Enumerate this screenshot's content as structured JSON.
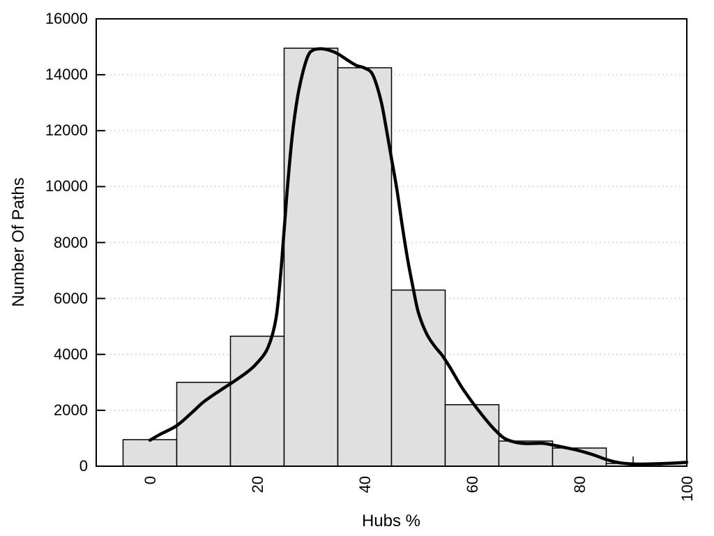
{
  "chart_data": {
    "type": "histogram_with_density_line",
    "title": "",
    "xlabel": "Hubs %",
    "ylabel": "Number Of Paths",
    "xlim": [
      -10,
      100
    ],
    "ylim": [
      0,
      16000
    ],
    "grid": "horizontal dotted lines at each y major tick",
    "legend": "none",
    "x_major_ticks": [
      0,
      20,
      40,
      60,
      80,
      100
    ],
    "x_tick_labels": [
      "0",
      "20",
      "40",
      "60",
      "80",
      "100"
    ],
    "x_minor_tick_step": 10,
    "x_tick_label_rotation_deg": -90,
    "y_major_ticks": [
      0,
      2000,
      4000,
      6000,
      8000,
      10000,
      12000,
      14000,
      16000
    ],
    "y_tick_labels": [
      "0",
      "2000",
      "4000",
      "6000",
      "8000",
      "10000",
      "12000",
      "14000",
      "16000"
    ],
    "bins": [
      {
        "x0": -5,
        "x1": 5,
        "count": 950
      },
      {
        "x0": 5,
        "x1": 15,
        "count": 3000
      },
      {
        "x0": 15,
        "x1": 25,
        "count": 4650
      },
      {
        "x0": 25,
        "x1": 35,
        "count": 14950
      },
      {
        "x0": 35,
        "x1": 45,
        "count": 14250
      },
      {
        "x0": 45,
        "x1": 55,
        "count": 6300
      },
      {
        "x0": 55,
        "x1": 65,
        "count": 2200
      },
      {
        "x0": 65,
        "x1": 75,
        "count": 900
      },
      {
        "x0": 75,
        "x1": 85,
        "count": 650
      },
      {
        "x0": 85,
        "x1": 95,
        "count": 100
      },
      {
        "x0": 95,
        "x1": 100,
        "count": 130
      }
    ],
    "density_curve": [
      [
        0,
        930
      ],
      [
        2,
        1150
      ],
      [
        5,
        1450
      ],
      [
        8,
        1950
      ],
      [
        10,
        2300
      ],
      [
        13,
        2700
      ],
      [
        15,
        2950
      ],
      [
        18,
        3350
      ],
      [
        20,
        3700
      ],
      [
        22,
        4250
      ],
      [
        23.5,
        5300
      ],
      [
        24.5,
        7200
      ],
      [
        25.5,
        9700
      ],
      [
        26.5,
        11800
      ],
      [
        27.5,
        13200
      ],
      [
        28.5,
        14100
      ],
      [
        29.5,
        14700
      ],
      [
        30.5,
        14890
      ],
      [
        32,
        14930
      ],
      [
        33.5,
        14870
      ],
      [
        35,
        14750
      ],
      [
        37,
        14500
      ],
      [
        38.5,
        14330
      ],
      [
        40,
        14240
      ],
      [
        41.5,
        14000
      ],
      [
        43,
        13100
      ],
      [
        44,
        12100
      ],
      [
        45,
        11000
      ],
      [
        46,
        9900
      ],
      [
        47,
        8600
      ],
      [
        48,
        7400
      ],
      [
        49,
        6400
      ],
      [
        50,
        5500
      ],
      [
        51.5,
        4750
      ],
      [
        53,
        4300
      ],
      [
        54.5,
        3950
      ],
      [
        56,
        3500
      ],
      [
        58,
        2850
      ],
      [
        60,
        2300
      ],
      [
        62,
        1800
      ],
      [
        64,
        1350
      ],
      [
        66,
        1000
      ],
      [
        68,
        860
      ],
      [
        70,
        810
      ],
      [
        73,
        820
      ],
      [
        75,
        760
      ],
      [
        77,
        680
      ],
      [
        79,
        600
      ],
      [
        81,
        500
      ],
      [
        83,
        380
      ],
      [
        85,
        240
      ],
      [
        87,
        140
      ],
      [
        89,
        90
      ],
      [
        91,
        75
      ],
      [
        93,
        80
      ],
      [
        95,
        90
      ],
      [
        97,
        105
      ],
      [
        100,
        140
      ]
    ],
    "colors": {
      "bar_fill": "#e0e0e0",
      "bar_stroke": "#000000",
      "curve": "#000000",
      "grid": "#c6c6c6",
      "frame": "#000000",
      "background": "#ffffff",
      "text": "#000000"
    }
  }
}
